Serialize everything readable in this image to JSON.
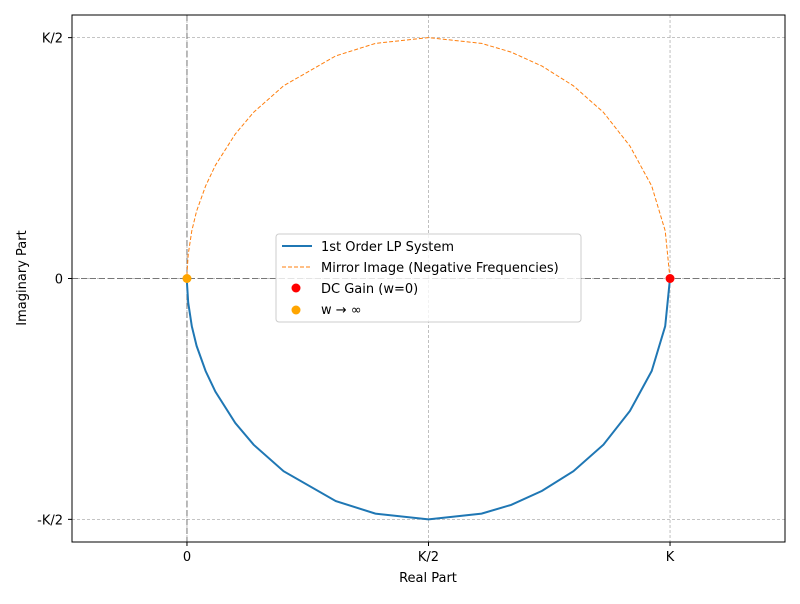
{
  "chart_data": {
    "type": "line",
    "title": "",
    "xlabel": "Real Part",
    "ylabel": "Imaginary Part",
    "xlim": [
      -0.238,
      1.238
    ],
    "ylim": [
      -0.547,
      0.547
    ],
    "grid": true,
    "x_ticks": [
      {
        "value": 0,
        "label": "0"
      },
      {
        "value": 0.5,
        "label": "K/2"
      },
      {
        "value": 1,
        "label": "K"
      }
    ],
    "y_ticks": [
      {
        "value": -0.5,
        "label": "-K/2"
      },
      {
        "value": 0,
        "label": "0"
      },
      {
        "value": 0.5,
        "label": "K/2"
      }
    ],
    "legend_position": "center",
    "series": [
      {
        "name": "1st Order LP System",
        "color": "#1f77b4",
        "style": "solid",
        "real": [
          1,
          0.99,
          0.962,
          0.917,
          0.862,
          0.8,
          0.735,
          0.671,
          0.61,
          0.5,
          0.39,
          0.308,
          0.2,
          0.138,
          0.1,
          0.0588,
          0.0385,
          0.02,
          0.0099,
          0.0025,
          0.0001,
          0
        ],
        "imag": [
          0,
          -0.099,
          -0.192,
          -0.275,
          -0.345,
          -0.4,
          -0.441,
          -0.47,
          -0.488,
          -0.5,
          -0.488,
          -0.462,
          -0.4,
          -0.345,
          -0.3,
          -0.235,
          -0.192,
          -0.14,
          -0.099,
          -0.0499,
          -0.01,
          0
        ]
      },
      {
        "name": "Mirror Image (Negative Frequencies)",
        "color": "#ff7f0e",
        "style": "dashed",
        "real": [
          1,
          0.99,
          0.962,
          0.917,
          0.862,
          0.8,
          0.735,
          0.671,
          0.61,
          0.5,
          0.39,
          0.308,
          0.2,
          0.138,
          0.1,
          0.0588,
          0.0385,
          0.02,
          0.0099,
          0.0025,
          0.0001,
          0
        ],
        "imag": [
          0,
          0.099,
          0.192,
          0.275,
          0.345,
          0.4,
          0.441,
          0.47,
          0.488,
          0.5,
          0.488,
          0.462,
          0.4,
          0.345,
          0.3,
          0.235,
          0.192,
          0.14,
          0.099,
          0.0499,
          0.01,
          0
        ]
      }
    ],
    "points": [
      {
        "name": "DC Gain (w=0)",
        "color": "#ff0000",
        "real": 1,
        "imag": 0
      },
      {
        "name": "w → ∞",
        "color": "#ffa500",
        "real": 0,
        "imag": 0
      }
    ]
  }
}
